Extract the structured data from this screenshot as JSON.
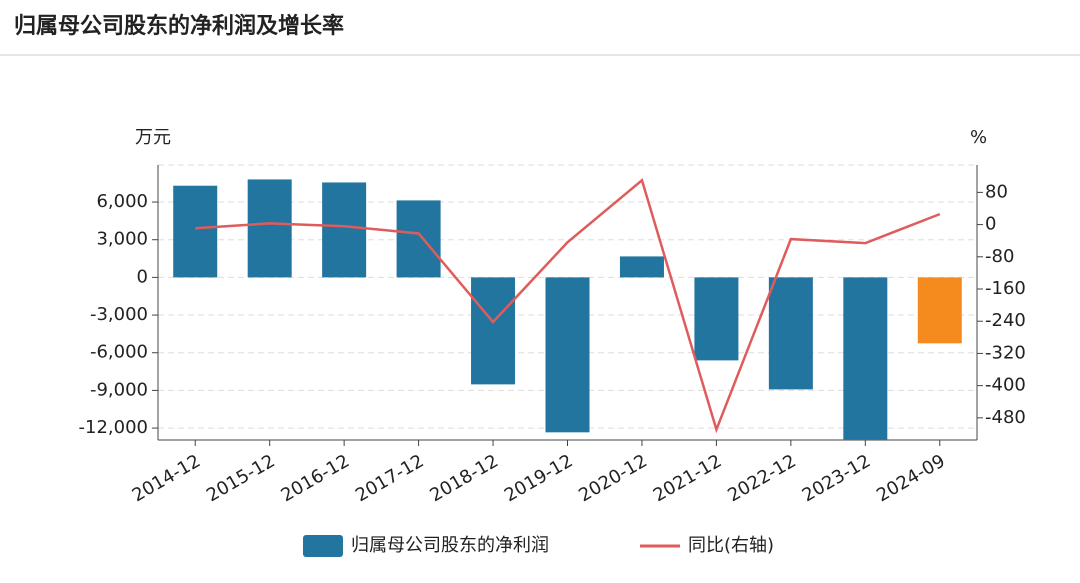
{
  "chart_data": {
    "type": "bar_line",
    "title": "归属母公司股东的净利润及增长率",
    "y_unit": "万元",
    "y2_unit": "%",
    "categories": [
      "2014-12",
      "2015-12",
      "2016-12",
      "2017-12",
      "2018-12",
      "2019-12",
      "2020-12",
      "2021-12",
      "2022-12",
      "2023-12",
      "2024-09"
    ],
    "series": [
      {
        "name": "归属母公司股东的净利润",
        "type": "bar",
        "color": "#21759f",
        "colors": [
          "#21759f",
          "#21759f",
          "#21759f",
          "#21759f",
          "#21759f",
          "#21759f",
          "#21759f",
          "#21759f",
          "#21759f",
          "#21759f",
          "#f58a1f"
        ],
        "values": [
          7300,
          7800,
          7560,
          6130,
          -8520,
          -12340,
          1670,
          -6610,
          -8920,
          -12900,
          -5250
        ]
      },
      {
        "name": "同比(右轴)",
        "type": "line",
        "color": "#e05b5b",
        "axis": "y2",
        "values": [
          -9,
          3,
          -4,
          -22,
          -242,
          -44,
          110,
          -509,
          -36,
          -46,
          26
        ]
      }
    ],
    "ylim": [
      -12950,
      8950
    ],
    "yticks": [
      {
        "value": 6000,
        "label": "6,000"
      },
      {
        "value": 3000,
        "label": "3,000"
      },
      0,
      {
        "value": -3000,
        "label": "-3,000"
      },
      {
        "value": -6000,
        "label": "-6,000"
      },
      {
        "value": -9000,
        "label": "-9,000"
      },
      {
        "value": -12000,
        "label": "-12,000"
      }
    ],
    "y2lim": [
      -535,
      148
    ],
    "y2ticks": [
      80,
      0,
      -80,
      -160,
      -240,
      -320,
      -400,
      -480
    ],
    "grid": true
  }
}
